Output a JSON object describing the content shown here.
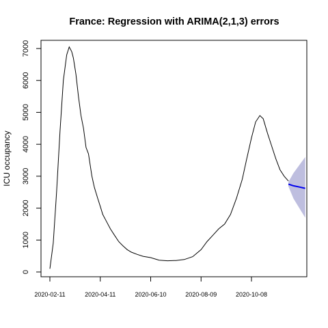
{
  "chart_data": {
    "type": "line",
    "title": "France: Regression with ARIMA(2,1,3) errors",
    "xlabel": "",
    "ylabel": "ICU occupancy",
    "x_tick_labels": [
      "2020-02-11",
      "2020-04-11",
      "2020-06-10",
      "2020-08-09",
      "2020-10-08"
    ],
    "y_tick_labels": [
      "0",
      "1000",
      "2000",
      "3000",
      "4000",
      "5000",
      "6000",
      "7000"
    ],
    "y_ticks": [
      0,
      1000,
      2000,
      3000,
      4000,
      5000,
      6000,
      7000
    ],
    "grid": false,
    "legend": "none",
    "colors": {
      "observed": "#000000",
      "forecast": "#0000ee",
      "interval": "#b3b3d9"
    },
    "series": [
      {
        "type": "line",
        "x": [
          "2020-02-11",
          "2020-02-15",
          "2020-02-19",
          "2020-02-23",
          "2020-02-27",
          "2020-03-02",
          "2020-03-05",
          "2020-03-08",
          "2020-03-10",
          "2020-03-13",
          "2020-03-16",
          "2020-03-19",
          "2020-03-22",
          "2020-03-25",
          "2020-03-28",
          "2020-04-01",
          "2020-04-04",
          "2020-04-08",
          "2020-04-11",
          "2020-04-14",
          "2020-04-18",
          "2020-04-23",
          "2020-04-28",
          "2020-05-03",
          "2020-05-08",
          "2020-05-13",
          "2020-05-18",
          "2020-05-25",
          "2020-06-01",
          "2020-06-10",
          "2020-06-20",
          "2020-06-30",
          "2020-07-10",
          "2020-07-20",
          "2020-07-30",
          "2020-08-09",
          "2020-08-16",
          "2020-08-23",
          "2020-08-30",
          "2020-09-06",
          "2020-09-13",
          "2020-09-20",
          "2020-09-27",
          "2020-10-02",
          "2020-10-08",
          "2020-10-13",
          "2020-10-18",
          "2020-10-22",
          "2020-10-27",
          "2020-11-01",
          "2020-11-06",
          "2020-11-11",
          "2020-11-16",
          "2020-11-21"
        ],
        "values": [
          100,
          900,
          2500,
          4400,
          6000,
          6800,
          7050,
          6900,
          6700,
          6200,
          5500,
          4900,
          4500,
          3900,
          3700,
          3000,
          2650,
          2300,
          2050,
          1800,
          1600,
          1350,
          1150,
          950,
          820,
          700,
          620,
          550,
          490,
          450,
          370,
          350,
          360,
          390,
          480,
          700,
          950,
          1150,
          1350,
          1500,
          1800,
          2300,
          2900,
          3500,
          4200,
          4700,
          4900,
          4800,
          4350,
          3950,
          3550,
          3200,
          3000,
          2850
        ]
      },
      {
        "type": "line",
        "x": [
          "2020-11-21",
          "2020-11-27",
          "2020-12-04",
          "2020-12-11"
        ],
        "values": [
          2750,
          2700,
          2660,
          2620
        ]
      },
      {
        "type": "area",
        "x": [
          "2020-11-21",
          "2020-11-27",
          "2020-12-04",
          "2020-12-11"
        ],
        "lower": [
          2680,
          2300,
          2000,
          1700
        ],
        "upper": [
          2820,
          3100,
          3350,
          3600
        ]
      }
    ]
  }
}
